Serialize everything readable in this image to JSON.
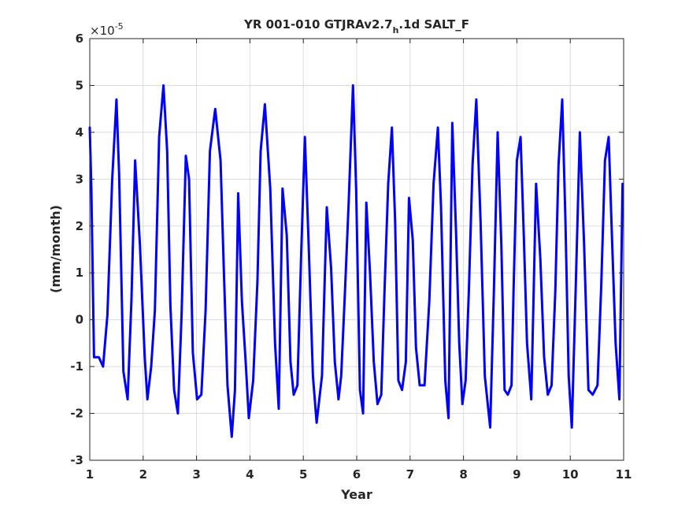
{
  "chart_data": {
    "type": "line",
    "title": "YR 001-010 GTJRAv2.7",
    "title_subscript": "h",
    "title_suffix": ".1d SALT_F",
    "xlabel": "Year",
    "ylabel": "(mm/month)",
    "exponent_base": "×10",
    "exponent_power": "-5",
    "xlim": [
      1,
      11
    ],
    "ylim": [
      -3,
      6
    ],
    "xticks": [
      1,
      2,
      3,
      4,
      5,
      6,
      7,
      8,
      9,
      10,
      11
    ],
    "xtick_labels": [
      "1",
      "2",
      "3",
      "4",
      "5",
      "6",
      "7",
      "8",
      "9",
      "10",
      "11"
    ],
    "yticks": [
      -3,
      -2,
      -1,
      0,
      1,
      2,
      3,
      4,
      5,
      6
    ],
    "ytick_labels": [
      "-3",
      "-2",
      "-1",
      "0",
      "1",
      "2",
      "3",
      "4",
      "5",
      "6"
    ],
    "grid": true,
    "series": [
      {
        "color": "#0000ff",
        "x": [
          1.0,
          1.03,
          1.08,
          1.17,
          1.25,
          1.33,
          1.42,
          1.5,
          1.55,
          1.63,
          1.71,
          1.78,
          1.85,
          1.94,
          2.03,
          2.08,
          2.15,
          2.22,
          2.3,
          2.38,
          2.45,
          2.51,
          2.58,
          2.65,
          2.72,
          2.8,
          2.86,
          2.93,
          3.01,
          3.09,
          3.17,
          3.25,
          3.35,
          3.45,
          3.51,
          3.58,
          3.66,
          3.72,
          3.78,
          3.85,
          3.92,
          3.98,
          4.06,
          4.14,
          4.2,
          4.28,
          4.38,
          4.47,
          4.54,
          4.61,
          4.69,
          4.76,
          4.82,
          4.89,
          4.96,
          5.03,
          5.1,
          5.18,
          5.25,
          5.35,
          5.44,
          5.52,
          5.59,
          5.66,
          5.71,
          5.78,
          5.85,
          5.93,
          5.99,
          6.06,
          6.12,
          6.18,
          6.25,
          6.32,
          6.39,
          6.46,
          6.52,
          6.59,
          6.66,
          6.72,
          6.78,
          6.85,
          6.92,
          6.98,
          7.05,
          7.11,
          7.18,
          7.27,
          7.36,
          7.44,
          7.52,
          7.58,
          7.66,
          7.72,
          7.79,
          7.86,
          7.92,
          7.98,
          8.04,
          8.1,
          8.17,
          8.24,
          8.32,
          8.4,
          8.5,
          8.57,
          8.64,
          8.71,
          8.77,
          8.83,
          8.9,
          8.94,
          9.0,
          9.07,
          9.13,
          9.19,
          9.27,
          9.36,
          9.44,
          9.51,
          9.58,
          9.65,
          9.72,
          9.78,
          9.85,
          9.91,
          9.97,
          10.03,
          10.1,
          10.18,
          10.26,
          10.34,
          10.42,
          10.51,
          10.58,
          10.65,
          10.72,
          10.78,
          10.85,
          10.92,
          10.98
        ],
        "y": [
          4.1,
          2.8,
          -0.8,
          -0.8,
          -1.0,
          0.1,
          3.0,
          4.7,
          3.1,
          -1.1,
          -1.7,
          0.4,
          3.4,
          1.6,
          -0.8,
          -1.7,
          -1.0,
          0.2,
          3.9,
          5.0,
          3.6,
          0.3,
          -1.5,
          -2.0,
          0.1,
          3.5,
          3.0,
          -0.7,
          -1.7,
          -1.6,
          0.2,
          3.6,
          4.5,
          3.4,
          1.1,
          -1.4,
          -2.5,
          -1.5,
          2.7,
          0.4,
          -0.9,
          -2.1,
          -1.3,
          0.8,
          3.6,
          4.6,
          2.8,
          -0.5,
          -1.9,
          2.8,
          1.8,
          -0.9,
          -1.6,
          -1.4,
          1.4,
          3.9,
          1.6,
          -1.2,
          -2.2,
          -1.2,
          2.4,
          1.1,
          -0.9,
          -1.7,
          -1.2,
          0.6,
          2.5,
          5.0,
          2.8,
          -1.5,
          -2.0,
          2.5,
          1.0,
          -0.9,
          -1.8,
          -1.6,
          0.6,
          2.9,
          4.1,
          2.1,
          -1.3,
          -1.5,
          -0.9,
          2.6,
          1.7,
          -0.6,
          -1.4,
          -1.4,
          0.4,
          2.9,
          4.1,
          2.4,
          -1.3,
          -2.1,
          4.2,
          1.9,
          -0.5,
          -1.8,
          -1.3,
          0.6,
          3.3,
          4.7,
          2.1,
          -1.2,
          -2.3,
          0.6,
          4.0,
          1.6,
          -1.5,
          -1.6,
          -1.4,
          0.7,
          3.4,
          3.9,
          1.8,
          -0.5,
          -1.7,
          2.9,
          1.3,
          -0.8,
          -1.6,
          -1.4,
          0.6,
          3.3,
          4.7,
          2.1,
          -1.2,
          -2.3,
          0.6,
          4.0,
          1.6,
          -1.5,
          -1.6,
          -1.4,
          0.7,
          3.4,
          3.9,
          1.8,
          -0.5,
          -1.7,
          2.9
        ]
      }
    ]
  }
}
